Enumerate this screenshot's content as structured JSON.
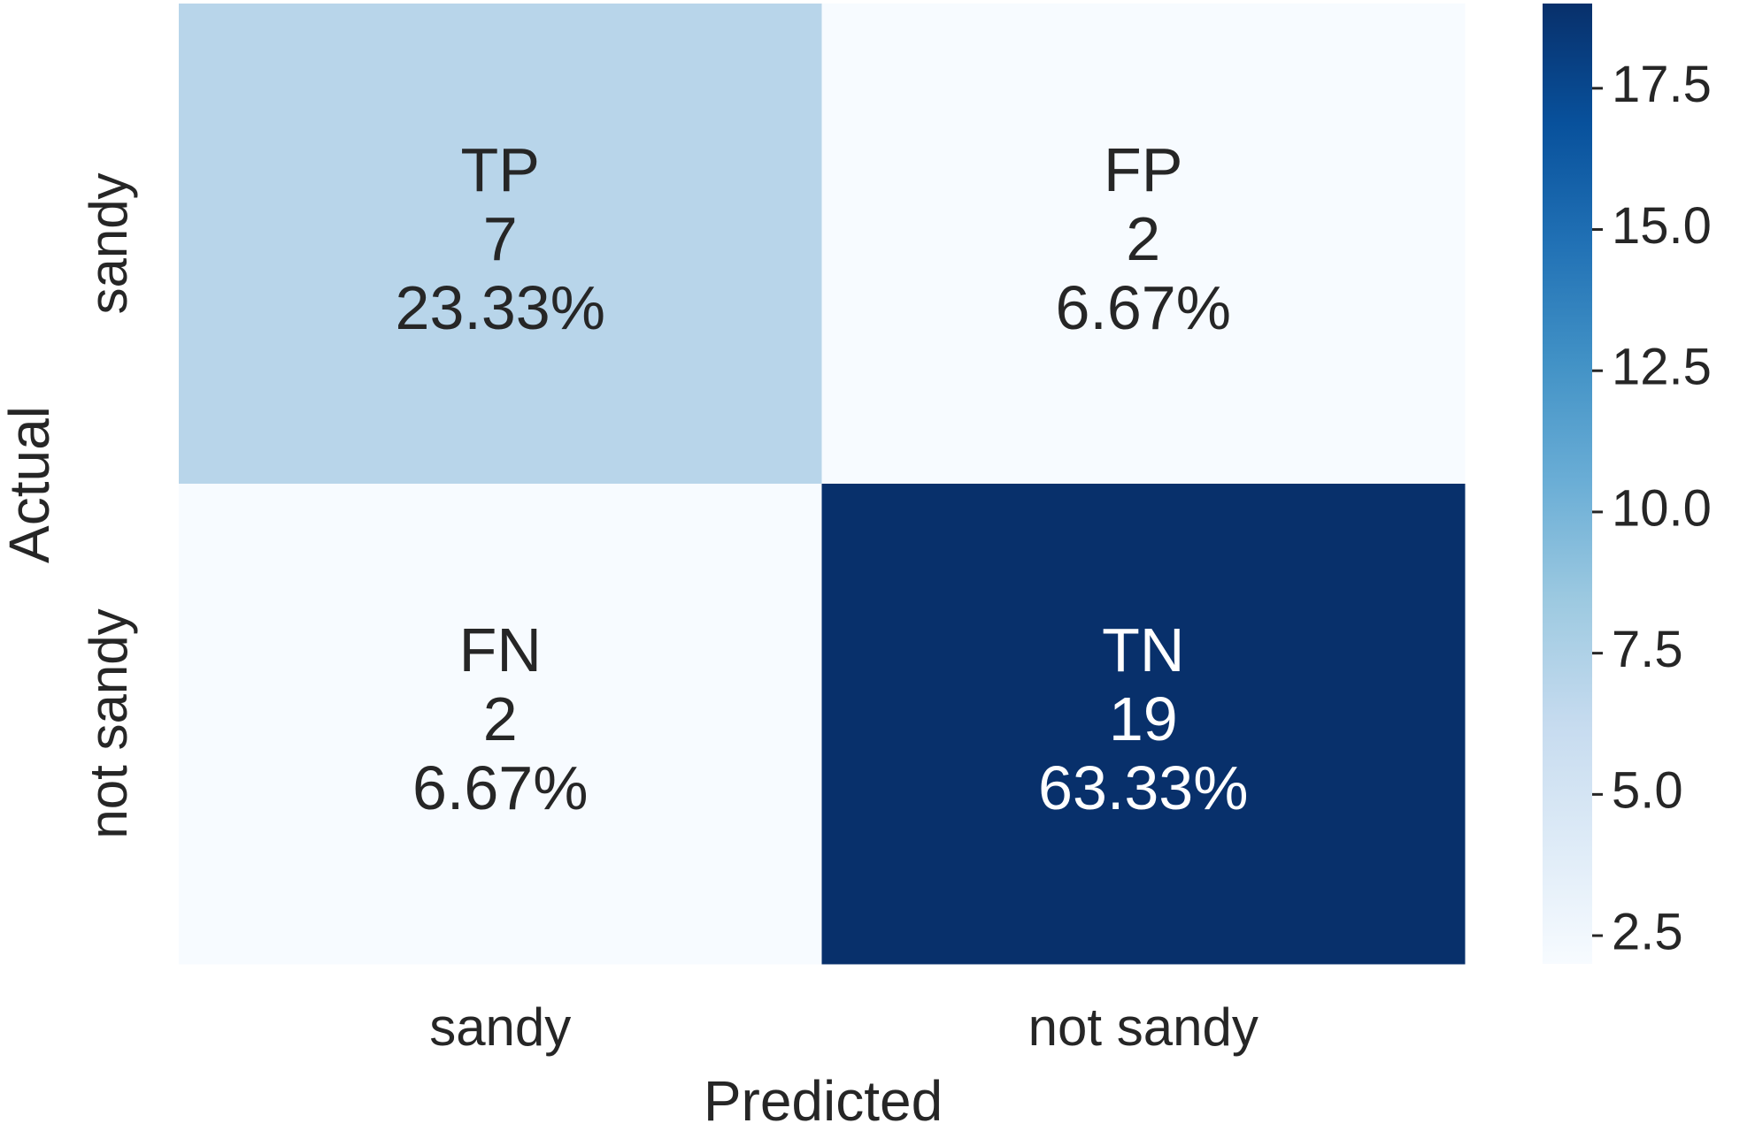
{
  "chart_data": {
    "type": "heatmap",
    "x_label": "Predicted",
    "y_label": "Actual",
    "x_categories": [
      "sandy",
      "not sandy"
    ],
    "y_categories": [
      "sandy",
      "not sandy"
    ],
    "cell_labels": [
      [
        "TP",
        "FP"
      ],
      [
        "FN",
        "TN"
      ]
    ],
    "values": [
      [
        7,
        2
      ],
      [
        2,
        19
      ]
    ],
    "percent_values": [
      [
        23.33,
        6.67
      ],
      [
        6.67,
        63.33
      ]
    ],
    "percent_labels": [
      [
        "23.33%",
        "6.67%"
      ],
      [
        "6.67%",
        "63.33%"
      ]
    ],
    "clim": [
      2,
      19
    ],
    "cticks": [
      2.5,
      {
        "value": 5,
        "label": "5.0"
      },
      7.5,
      {
        "value": 10,
        "label": "10.0"
      },
      12.5,
      {
        "value": 15,
        "label": "15.0"
      },
      17.5
    ],
    "colormap": [
      "#f7fbff",
      "#deebf7",
      "#c6dbef",
      "#9ecae1",
      "#6baed6",
      "#4292c6",
      "#2171b5",
      "#08519c",
      "#08306b"
    ]
  }
}
